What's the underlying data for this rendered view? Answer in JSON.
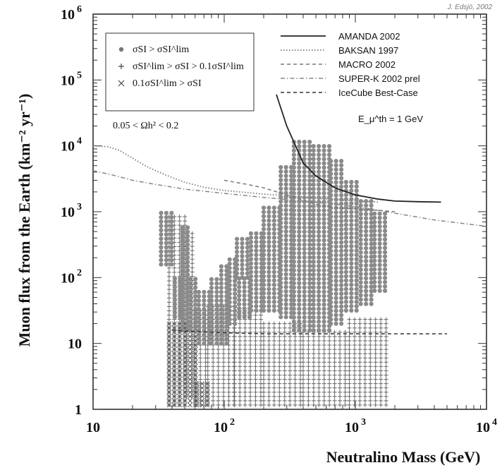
{
  "chart_data": {
    "type": "scatter",
    "credit": "J. Edsjö, 2002",
    "xlabel": "Neutralino Mass (GeV)",
    "ylabel": "Muon flux from the Earth (km⁻² yr⁻¹)",
    "x_scale": "log",
    "y_scale": "log",
    "xlim": [
      10,
      10000
    ],
    "ylim": [
      1,
      1000000
    ],
    "x_ticks": [
      {
        "value": 10,
        "label": "10"
      },
      {
        "value": 100,
        "base": "10",
        "exp": "2"
      },
      {
        "value": 1000,
        "base": "10",
        "exp": "3"
      },
      {
        "value": 10000,
        "base": "10",
        "exp": "4"
      }
    ],
    "y_ticks": [
      {
        "value": 1,
        "label": "1"
      },
      {
        "value": 10,
        "label": "10"
      },
      {
        "value": 100,
        "base": "10",
        "exp": "2"
      },
      {
        "value": 1000,
        "base": "10",
        "exp": "3"
      },
      {
        "value": 10000,
        "base": "10",
        "exp": "4"
      },
      {
        "value": 100000,
        "base": "10",
        "exp": "5"
      },
      {
        "value": 1000000,
        "base": "10",
        "exp": "6"
      }
    ],
    "legend_left": {
      "entries": [
        {
          "marker": "dot",
          "text": "σSI > σSI^lim"
        },
        {
          "marker": "plus",
          "text": "σSI^lim > σSI > 0.1σSI^lim"
        },
        {
          "marker": "cross",
          "text": "0.1σSI^lim > σSI"
        }
      ],
      "note": "0.05 < Ωh² < 0.2"
    },
    "limit_curves": [
      {
        "name": "AMANDA 2002",
        "style": "solid",
        "x": [
          250,
          300,
          400,
          500,
          700,
          1000,
          1500,
          2000,
          3000,
          4500
        ],
        "y": [
          60000,
          20000,
          5500,
          3500,
          2300,
          1800,
          1550,
          1450,
          1420,
          1400
        ]
      },
      {
        "name": "BAKSAN 1997",
        "style": "dotted",
        "x": [
          10,
          13,
          16,
          20,
          25,
          30,
          40,
          50,
          70,
          100,
          150,
          200,
          300,
          500,
          1000,
          1500
        ],
        "y": [
          10000,
          9700,
          8500,
          6500,
          5000,
          4200,
          3300,
          2800,
          2350,
          2100,
          1950,
          1850,
          1750,
          1600,
          1450,
          1400
        ]
      },
      {
        "name": "MACRO 2002",
        "style": "dashed",
        "x": [
          100,
          150,
          200,
          300,
          400,
          500,
          700,
          1000,
          1500,
          2000
        ],
        "y": [
          3000,
          2600,
          2300,
          1800,
          1500,
          1300,
          1150,
          1100,
          1050,
          1000
        ]
      },
      {
        "name": "SUPER-K 2002 prel",
        "style": "dashdot",
        "x": [
          10,
          15,
          20,
          30,
          50,
          100,
          200,
          400,
          700,
          1000,
          2000,
          4000,
          10000
        ],
        "y": [
          4200,
          3500,
          3000,
          2600,
          2200,
          1900,
          1650,
          1450,
          1300,
          1200,
          950,
          750,
          600
        ]
      },
      {
        "name": "IceCube Best-Case",
        "style": "dashed",
        "x": [
          40,
          50,
          70,
          100,
          200,
          500,
          1000,
          2000,
          5000
        ],
        "y": [
          16,
          15.5,
          15,
          14.5,
          14,
          14,
          14,
          14,
          14
        ]
      }
    ],
    "threshold_note": "E_μ^th = 1 GeV",
    "model_scatter": {
      "dot_cells": [
        {
          "x": [
            33,
            42
          ],
          "y": [
            2.2,
            3.0
          ]
        },
        {
          "x": [
            42,
            48
          ],
          "y": [
            1.4,
            2.0
          ]
        },
        {
          "x": [
            48,
            55
          ],
          "y": [
            1.2,
            2.8
          ]
        },
        {
          "x": [
            55,
            64
          ],
          "y": [
            1.2,
            2.0
          ]
        },
        {
          "x": [
            64,
            80
          ],
          "y": [
            1.0,
            1.8
          ]
        },
        {
          "x": [
            80,
            95
          ],
          "y": [
            1.0,
            2.0
          ]
        },
        {
          "x": [
            95,
            110
          ],
          "y": [
            1.0,
            2.2
          ]
        },
        {
          "x": [
            110,
            130
          ],
          "y": [
            1.3,
            2.3
          ]
        },
        {
          "x": [
            130,
            160
          ],
          "y": [
            1.4,
            2.0
          ]
        },
        {
          "x": [
            125,
            155
          ],
          "y": [
            2.0,
            2.6
          ]
        },
        {
          "x": [
            160,
            200
          ],
          "y": [
            1.5,
            2.7
          ]
        },
        {
          "x": [
            200,
            270
          ],
          "y": [
            1.5,
            3.1
          ]
        },
        {
          "x": [
            270,
            340
          ],
          "y": [
            1.4,
            3.7
          ]
        },
        {
          "x": [
            340,
            480
          ],
          "y": [
            1.2,
            4.1
          ]
        },
        {
          "x": [
            480,
            650
          ],
          "y": [
            1.2,
            4.0
          ]
        },
        {
          "x": [
            650,
            850
          ],
          "y": [
            1.3,
            3.8
          ]
        },
        {
          "x": [
            850,
            1100
          ],
          "y": [
            1.5,
            3.5
          ]
        },
        {
          "x": [
            1100,
            1400
          ],
          "y": [
            1.6,
            3.2
          ]
        },
        {
          "x": [
            1400,
            1800
          ],
          "y": [
            1.8,
            3.0
          ]
        }
      ],
      "plus_cells": [
        {
          "x": [
            38,
            52
          ],
          "y": [
            0.0,
            2.95
          ]
        },
        {
          "x": [
            52,
            60
          ],
          "y": [
            0.2,
            2.7
          ]
        },
        {
          "x": [
            60,
            75
          ],
          "y": [
            0.0,
            1.5
          ]
        },
        {
          "x": [
            75,
            120
          ],
          "y": [
            0.0,
            1.6
          ]
        },
        {
          "x": [
            120,
            200
          ],
          "y": [
            0.0,
            1.5
          ]
        },
        {
          "x": [
            200,
            400
          ],
          "y": [
            0.0,
            1.3
          ]
        },
        {
          "x": [
            400,
            900
          ],
          "y": [
            0.0,
            1.2
          ]
        },
        {
          "x": [
            900,
            1800
          ],
          "y": [
            0.0,
            1.4
          ]
        }
      ],
      "cross_cells": [
        {
          "x": [
            38,
            62
          ],
          "y": [
            0.0,
            1.3
          ]
        },
        {
          "x": [
            62,
            75
          ],
          "y": [
            0.0,
            0.4
          ]
        }
      ]
    }
  }
}
